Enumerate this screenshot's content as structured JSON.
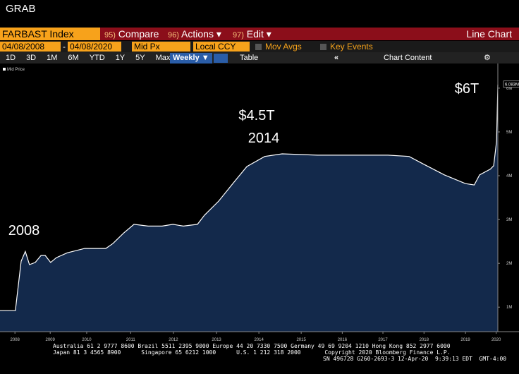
{
  "window_title": "GRAB",
  "toolbar": {
    "security": "FARBAST Index",
    "menus": [
      {
        "key": "95)",
        "label": "Compare"
      },
      {
        "key": "96)",
        "label": "Actions ▾"
      },
      {
        "key": "97)",
        "label": "Edit ▾"
      }
    ],
    "view": "Line Chart"
  },
  "controls": {
    "start_date": "04/08/2008",
    "separator": "-",
    "end_date": "04/08/2020",
    "field": "Mid Px",
    "currency": "Local CCY",
    "mov_avgs": "Mov Avgs",
    "key_events": "Key Events"
  },
  "periods": [
    "1D",
    "3D",
    "1M",
    "6M",
    "YTD",
    "1Y",
    "5Y",
    "Max"
  ],
  "frequency": "Weekly ▼",
  "table": "Table",
  "chart_content": "Chart Content",
  "chart_data": {
    "type": "area",
    "annotations": [
      {
        "text": "2008"
      },
      {
        "text": "$4.5T"
      },
      {
        "text": "2014"
      },
      {
        "text": "$6T"
      }
    ],
    "x": [
      2008.27,
      2008.64,
      2008.68,
      2008.78,
      2008.88,
      2008.98,
      2009.12,
      2009.26,
      2009.36,
      2009.49,
      2009.63,
      2009.89,
      2010.31,
      2010.82,
      2010.99,
      2011.25,
      2011.5,
      2011.84,
      2012.18,
      2012.44,
      2012.69,
      2013.03,
      2013.2,
      2013.54,
      2013.88,
      2014.22,
      2014.65,
      2015.07,
      2015.92,
      2016.77,
      2017.62,
      2018.13,
      2018.47,
      2018.98,
      2019.49,
      2019.7,
      2019.83,
      2020.09,
      2020.17,
      2020.24,
      2020.27
    ],
    "series": [
      {
        "name": "Mid Price",
        "color": "#13294b",
        "line_color": "#ffffff",
        "values": [
          920000,
          920000,
          1240000,
          2050000,
          2270000,
          1970000,
          2020000,
          2180000,
          2180000,
          2020000,
          2130000,
          2240000,
          2340000,
          2340000,
          2450000,
          2690000,
          2890000,
          2850000,
          2850000,
          2890000,
          2850000,
          2890000,
          3100000,
          3420000,
          3820000,
          4210000,
          4440000,
          4500000,
          4470000,
          4470000,
          4470000,
          4440000,
          4270000,
          4020000,
          3820000,
          3790000,
          4020000,
          4150000,
          4230000,
          4790000,
          6080000
        ]
      }
    ],
    "last_price_tag": {
      "value": 6083000,
      "label": "6.083M"
    },
    "xlim": [
      2008.27,
      2020.27
    ],
    "xticks": [
      {
        "value": 2008.63,
        "label": "2008"
      },
      {
        "value": 2009.48,
        "label": "2009"
      },
      {
        "value": 2010.36,
        "label": "2010"
      },
      {
        "value": 2011.42,
        "label": "2011"
      },
      {
        "value": 2012.45,
        "label": "2012"
      },
      {
        "value": 2013.49,
        "label": "2013"
      },
      {
        "value": 2014.51,
        "label": "2014"
      },
      {
        "value": 2015.53,
        "label": "2015"
      },
      {
        "value": 2016.52,
        "label": "2016"
      },
      {
        "value": 2017.5,
        "label": "2017"
      },
      {
        "value": 2018.49,
        "label": "2018"
      },
      {
        "value": 2019.49,
        "label": "2019"
      },
      {
        "value": 2020.23,
        "label": "2020"
      }
    ],
    "ylim": [
      440000,
      6530000
    ],
    "yticks": [
      {
        "value": 1000000,
        "label": "1M"
      },
      {
        "value": 2000000,
        "label": "2M"
      },
      {
        "value": 3000000,
        "label": "3M"
      },
      {
        "value": 4000000,
        "label": "4M"
      },
      {
        "value": 5000000,
        "label": "5M"
      },
      {
        "value": 6000000,
        "label": "6M"
      }
    ]
  },
  "footer": [
    "Australia 61 2 9777 8600 Brazil 5511 2395 9000 Europe 44 20 7330 7500 Germany 49 69 9204 1210 Hong Kong 852 2977 6000",
    "Japan 81 3 4565 8900      Singapore 65 6212 1000      U.S. 1 212 318 2000       Copyright 2020 Bloomberg Finance L.P.",
    "SN 496728 G260-2693-3 12-Apr-20  9:39:13 EDT  GMT-4:00"
  ]
}
